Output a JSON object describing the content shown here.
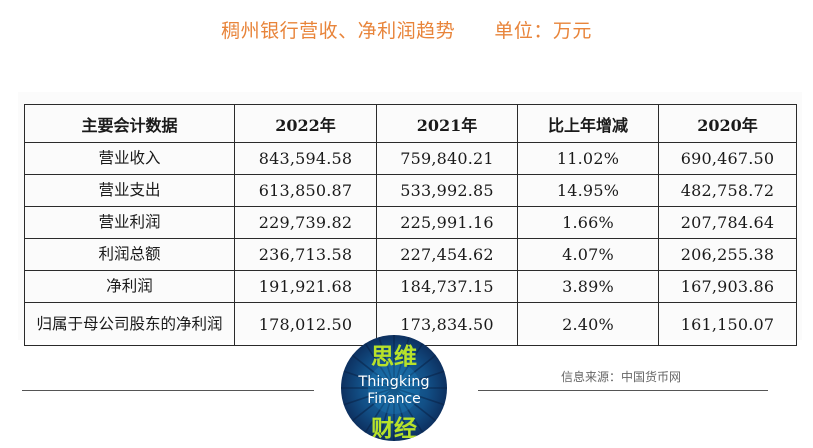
{
  "title": "稠州银行营收、净利润趋势      单位：万元",
  "table": {
    "headers": [
      "主要会计数据",
      "2022年",
      "2021年",
      "比上年增减",
      "2020年"
    ],
    "rows": [
      {
        "label": "营业收入",
        "y2022": "843,594.58",
        "y2021": "759,840.21",
        "change": "11.02%",
        "y2020": "690,467.50"
      },
      {
        "label": "营业支出",
        "y2022": "613,850.87",
        "y2021": "533,992.85",
        "change": "14.95%",
        "y2020": "482,758.72"
      },
      {
        "label": "营业利润",
        "y2022": "229,739.82",
        "y2021": "225,991.16",
        "change": "1.66%",
        "y2020": "207,784.64"
      },
      {
        "label": "利润总额",
        "y2022": "236,713.58",
        "y2021": "227,454.62",
        "change": "4.07%",
        "y2020": "206,255.38"
      },
      {
        "label": "净利润",
        "y2022": "191,921.68",
        "y2021": "184,737.15",
        "change": "3.89%",
        "y2020": "167,903.86"
      },
      {
        "label": "归属于母公司股东的净利润",
        "y2022": "178,012.50",
        "y2021": "173,834.50",
        "change": "2.40%",
        "y2020": "161,150.07"
      }
    ]
  },
  "logo": {
    "zh_top": "思维",
    "en_line1": "Thingking",
    "en_line2": "Finance",
    "zh_bottom": "财经"
  },
  "source": "信息来源：中国货币网",
  "colors": {
    "title": "#e8843a",
    "logo_green": "#b8e22a",
    "logo_blue": "#124f86"
  }
}
